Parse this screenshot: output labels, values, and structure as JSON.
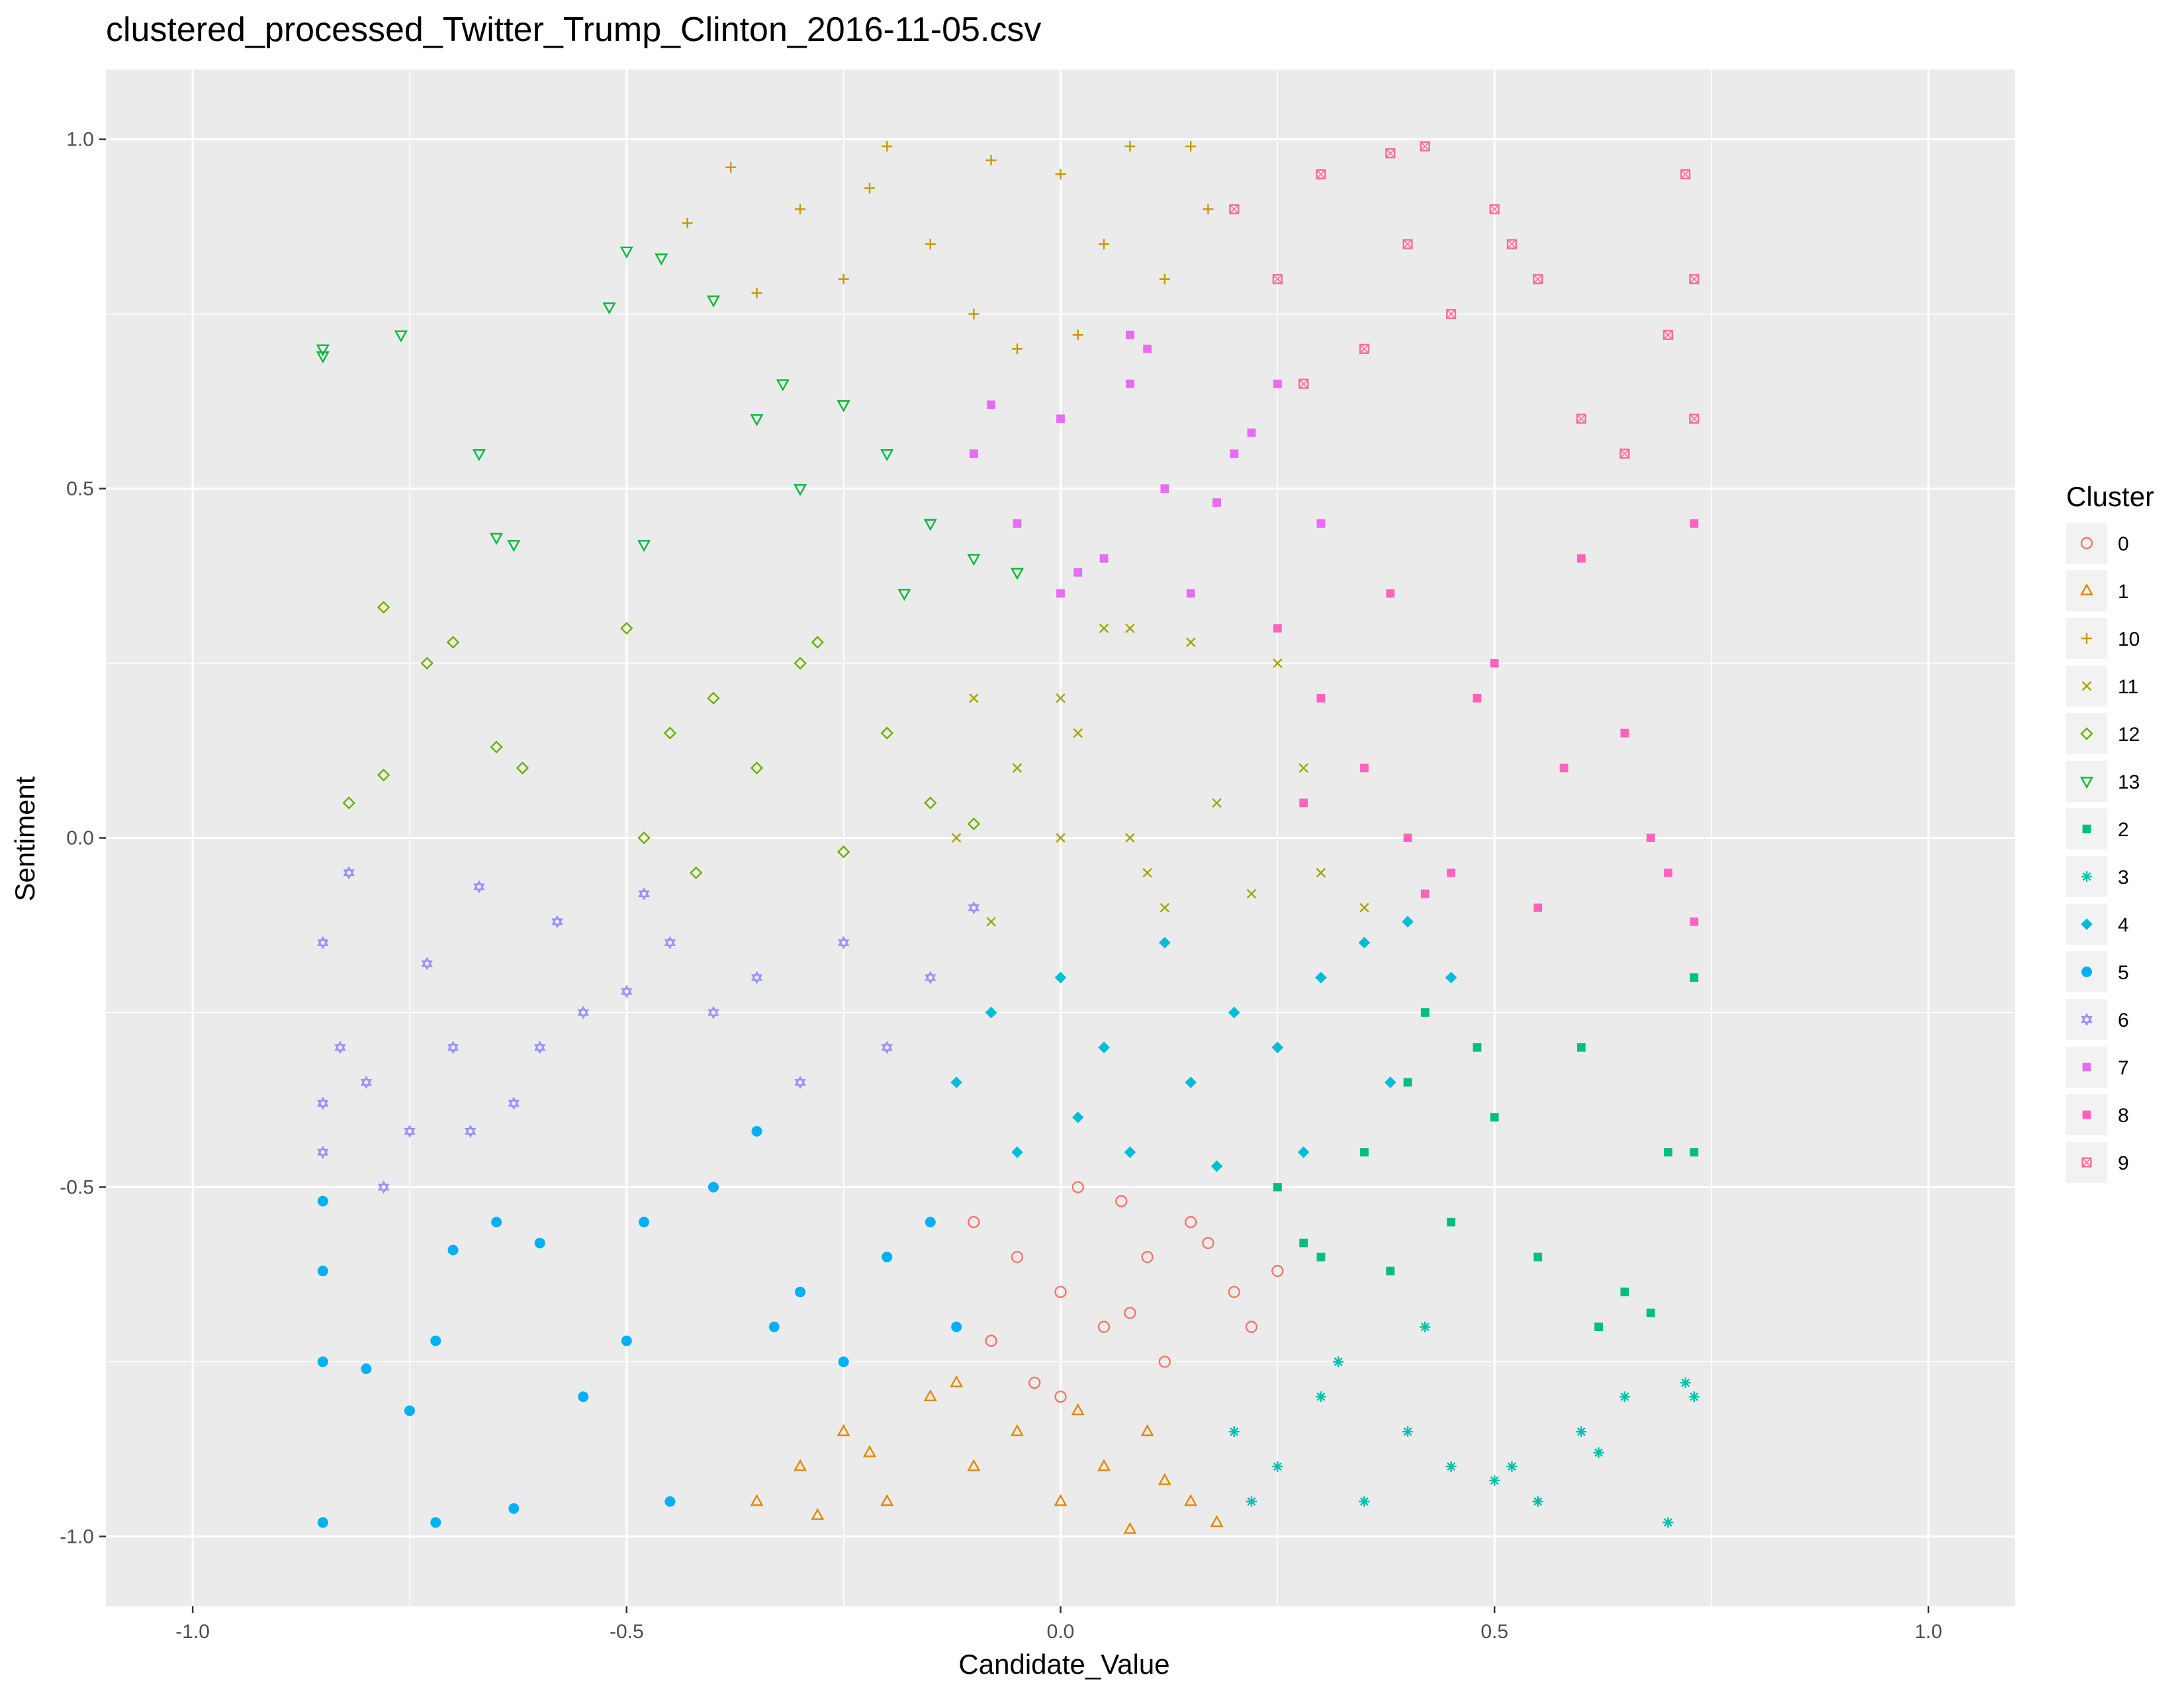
{
  "chart_data": {
    "type": "scatter",
    "title": "clustered_processed_Twitter_Trump_Clinton_2016-11-05.csv",
    "xlabel": "Candidate_Value",
    "ylabel": "Sentiment",
    "xlim": [
      -1.1,
      1.1
    ],
    "ylim": [
      -1.1,
      1.1
    ],
    "x_ticks": [
      -1.0,
      -0.5,
      0.0,
      0.5,
      1.0
    ],
    "y_ticks": [
      -1.0,
      -0.5,
      0.0,
      0.5,
      1.0
    ],
    "x_tick_labels": [
      "-1.0",
      "-0.5",
      "0.0",
      "0.5",
      "1.0"
    ],
    "y_tick_labels": [
      "-1.0",
      "-0.5",
      "0.0",
      "0.5",
      "1.0"
    ],
    "grid": true,
    "panel_background": "#ebebeb",
    "legend": {
      "title": "Cluster",
      "placement": "right",
      "entries": [
        {
          "label": "0",
          "color": "#F8766D",
          "shape": "circle-open"
        },
        {
          "label": "1",
          "color": "#E58700",
          "shape": "triangle-open"
        },
        {
          "label": "10",
          "color": "#C99800",
          "shape": "plus"
        },
        {
          "label": "11",
          "color": "#A3A500",
          "shape": "cross"
        },
        {
          "label": "12",
          "color": "#6BB100",
          "shape": "diamond-open"
        },
        {
          "label": "13",
          "color": "#00BA38",
          "shape": "triangle-down-open"
        },
        {
          "label": "2",
          "color": "#00BF7D",
          "shape": "square-filled"
        },
        {
          "label": "3",
          "color": "#00C0AF",
          "shape": "asterisk"
        },
        {
          "label": "4",
          "color": "#00BCD8",
          "shape": "diamond-filled"
        },
        {
          "label": "5",
          "color": "#00B0F6",
          "shape": "circle-filled"
        },
        {
          "label": "6",
          "color": "#9590FF",
          "shape": "star-of-david"
        },
        {
          "label": "7",
          "color": "#E76BF3",
          "shape": "square-filled"
        },
        {
          "label": "8",
          "color": "#FF62BC",
          "shape": "square-filled"
        },
        {
          "label": "9",
          "color": "#FF6C91",
          "shape": "square-cross"
        }
      ]
    },
    "series": [
      {
        "name": "0",
        "x": [
          -0.1,
          -0.05,
          0.0,
          0.05,
          0.1,
          0.15,
          0.2,
          0.25,
          -0.08,
          0.02,
          0.12,
          0.22,
          -0.03,
          0.07,
          0.17,
          0.0,
          0.08
        ],
        "y": [
          -0.55,
          -0.6,
          -0.65,
          -0.7,
          -0.6,
          -0.55,
          -0.65,
          -0.62,
          -0.72,
          -0.5,
          -0.75,
          -0.7,
          -0.78,
          -0.52,
          -0.58,
          -0.8,
          -0.68
        ]
      },
      {
        "name": "1",
        "x": [
          -0.35,
          -0.3,
          -0.25,
          -0.2,
          -0.15,
          -0.1,
          -0.05,
          0.0,
          0.05,
          0.1,
          0.15,
          0.18,
          -0.28,
          -0.12,
          0.02,
          0.08,
          -0.22,
          0.12
        ],
        "y": [
          -0.95,
          -0.9,
          -0.85,
          -0.95,
          -0.8,
          -0.9,
          -0.85,
          -0.95,
          -0.9,
          -0.85,
          -0.95,
          -0.98,
          -0.97,
          -0.78,
          -0.82,
          -0.99,
          -0.88,
          -0.92
        ]
      },
      {
        "name": "10",
        "x": [
          -0.43,
          -0.38,
          -0.3,
          -0.25,
          -0.2,
          -0.15,
          -0.1,
          -0.05,
          0.0,
          0.05,
          0.08,
          0.12,
          0.17,
          -0.35,
          -0.22,
          -0.08,
          0.02,
          0.15
        ],
        "y": [
          0.88,
          0.96,
          0.9,
          0.8,
          0.99,
          0.85,
          0.75,
          0.7,
          0.95,
          0.85,
          0.99,
          0.8,
          0.9,
          0.78,
          0.93,
          0.97,
          0.72,
          0.99
        ]
      },
      {
        "name": "11",
        "x": [
          -0.12,
          -0.05,
          0.0,
          0.05,
          0.08,
          0.12,
          0.18,
          0.25,
          0.3,
          -0.08,
          0.02,
          0.15,
          0.22,
          0.35,
          -0.1,
          0.1,
          0.28,
          0.0,
          0.08
        ],
        "y": [
          0.0,
          0.1,
          0.2,
          0.3,
          0.0,
          -0.1,
          0.05,
          0.25,
          -0.05,
          -0.12,
          0.15,
          0.28,
          -0.08,
          -0.1,
          0.2,
          -0.05,
          0.1,
          0.0,
          0.3
        ]
      },
      {
        "name": "12",
        "x": [
          -0.82,
          -0.78,
          -0.73,
          -0.7,
          -0.65,
          -0.62,
          -0.5,
          -0.48,
          -0.45,
          -0.4,
          -0.35,
          -0.3,
          -0.25,
          -0.2,
          -0.15,
          -0.1,
          -0.78,
          -0.42,
          -0.28
        ],
        "y": [
          0.05,
          0.33,
          0.25,
          0.28,
          0.13,
          0.1,
          0.3,
          0.0,
          0.15,
          0.2,
          0.1,
          0.25,
          -0.02,
          0.15,
          0.05,
          0.02,
          0.09,
          -0.05,
          0.28
        ]
      },
      {
        "name": "13",
        "x": [
          -0.85,
          -0.85,
          -0.76,
          -0.67,
          -0.65,
          -0.63,
          -0.52,
          -0.5,
          -0.46,
          -0.4,
          -0.35,
          -0.3,
          -0.25,
          -0.2,
          -0.15,
          -0.1,
          -0.05,
          -0.48,
          -0.32,
          -0.18
        ],
        "y": [
          0.7,
          0.69,
          0.72,
          0.55,
          0.43,
          0.42,
          0.76,
          0.84,
          0.83,
          0.77,
          0.6,
          0.5,
          0.62,
          0.55,
          0.45,
          0.4,
          0.38,
          0.42,
          0.65,
          0.35
        ]
      },
      {
        "name": "2",
        "x": [
          0.25,
          0.3,
          0.35,
          0.4,
          0.45,
          0.5,
          0.55,
          0.6,
          0.65,
          0.7,
          0.73,
          0.28,
          0.38,
          0.42,
          0.48,
          0.62,
          0.68,
          0.73
        ],
        "y": [
          -0.5,
          -0.6,
          -0.45,
          -0.35,
          -0.55,
          -0.4,
          -0.6,
          -0.3,
          -0.65,
          -0.45,
          -0.2,
          -0.58,
          -0.62,
          -0.25,
          -0.3,
          -0.7,
          -0.68,
          -0.45
        ]
      },
      {
        "name": "3",
        "x": [
          0.2,
          0.25,
          0.3,
          0.35,
          0.4,
          0.45,
          0.5,
          0.55,
          0.6,
          0.65,
          0.7,
          0.73,
          0.22,
          0.32,
          0.42,
          0.52,
          0.62,
          0.72
        ],
        "y": [
          -0.85,
          -0.9,
          -0.8,
          -0.95,
          -0.85,
          -0.9,
          -0.92,
          -0.95,
          -0.85,
          -0.8,
          -0.98,
          -0.8,
          -0.95,
          -0.75,
          -0.7,
          -0.9,
          -0.88,
          -0.78
        ]
      },
      {
        "name": "4",
        "x": [
          -0.12,
          -0.08,
          0.0,
          0.05,
          0.08,
          0.12,
          0.15,
          0.2,
          0.25,
          0.3,
          0.35,
          0.4,
          0.45,
          -0.05,
          0.02,
          0.18,
          0.28,
          0.38
        ],
        "y": [
          -0.35,
          -0.25,
          -0.2,
          -0.3,
          -0.45,
          -0.15,
          -0.35,
          -0.25,
          -0.3,
          -0.2,
          -0.15,
          -0.12,
          -0.2,
          -0.45,
          -0.4,
          -0.47,
          -0.45,
          -0.35
        ]
      },
      {
        "name": "5",
        "x": [
          -0.85,
          -0.85,
          -0.85,
          -0.8,
          -0.75,
          -0.72,
          -0.7,
          -0.65,
          -0.6,
          -0.55,
          -0.5,
          -0.48,
          -0.45,
          -0.4,
          -0.35,
          -0.33,
          -0.3,
          -0.25,
          -0.2,
          -0.15,
          -0.12,
          -0.85,
          -0.72,
          -0.63
        ],
        "y": [
          -0.52,
          -0.62,
          -0.75,
          -0.76,
          -0.82,
          -0.98,
          -0.59,
          -0.55,
          -0.58,
          -0.8,
          -0.72,
          -0.55,
          -0.95,
          -0.5,
          -0.42,
          -0.7,
          -0.65,
          -0.75,
          -0.6,
          -0.55,
          -0.7,
          -0.98,
          -0.72,
          -0.96
        ]
      },
      {
        "name": "6",
        "x": [
          -0.85,
          -0.85,
          -0.83,
          -0.82,
          -0.8,
          -0.75,
          -0.73,
          -0.7,
          -0.67,
          -0.63,
          -0.6,
          -0.58,
          -0.55,
          -0.5,
          -0.48,
          -0.45,
          -0.4,
          -0.35,
          -0.3,
          -0.25,
          -0.2,
          -0.15,
          -0.1,
          -0.85,
          -0.78,
          -0.68
        ],
        "y": [
          -0.45,
          -0.38,
          -0.3,
          -0.05,
          -0.35,
          -0.42,
          -0.18,
          -0.3,
          -0.07,
          -0.38,
          -0.3,
          -0.12,
          -0.25,
          -0.22,
          -0.08,
          -0.15,
          -0.25,
          -0.2,
          -0.35,
          -0.15,
          -0.3,
          -0.2,
          -0.1,
          -0.15,
          -0.5,
          -0.42
        ]
      },
      {
        "name": "7",
        "x": [
          -0.1,
          -0.05,
          0.0,
          0.05,
          0.08,
          0.12,
          0.15,
          0.2,
          0.25,
          0.3,
          -0.08,
          0.02,
          0.1,
          0.18,
          0.22,
          0.0,
          0.08
        ],
        "y": [
          0.55,
          0.45,
          0.6,
          0.4,
          0.65,
          0.5,
          0.35,
          0.55,
          0.65,
          0.45,
          0.62,
          0.38,
          0.7,
          0.48,
          0.58,
          0.35,
          0.72
        ]
      },
      {
        "name": "8",
        "x": [
          0.25,
          0.3,
          0.35,
          0.4,
          0.45,
          0.5,
          0.55,
          0.6,
          0.65,
          0.7,
          0.73,
          0.28,
          0.38,
          0.42,
          0.48,
          0.58,
          0.68,
          0.73
        ],
        "y": [
          0.3,
          0.2,
          0.1,
          0.0,
          -0.05,
          0.25,
          -0.1,
          0.4,
          0.15,
          -0.05,
          0.45,
          0.05,
          0.35,
          -0.08,
          0.2,
          0.1,
          0.0,
          -0.12
        ]
      },
      {
        "name": "9",
        "x": [
          0.2,
          0.25,
          0.3,
          0.35,
          0.4,
          0.45,
          0.5,
          0.55,
          0.6,
          0.65,
          0.7,
          0.72,
          0.73,
          0.28,
          0.38,
          0.42,
          0.52,
          0.73
        ],
        "y": [
          0.9,
          0.8,
          0.95,
          0.7,
          0.85,
          0.75,
          0.9,
          0.8,
          0.6,
          0.55,
          0.72,
          0.95,
          0.8,
          0.65,
          0.98,
          0.99,
          0.85,
          0.6
        ]
      }
    ]
  }
}
